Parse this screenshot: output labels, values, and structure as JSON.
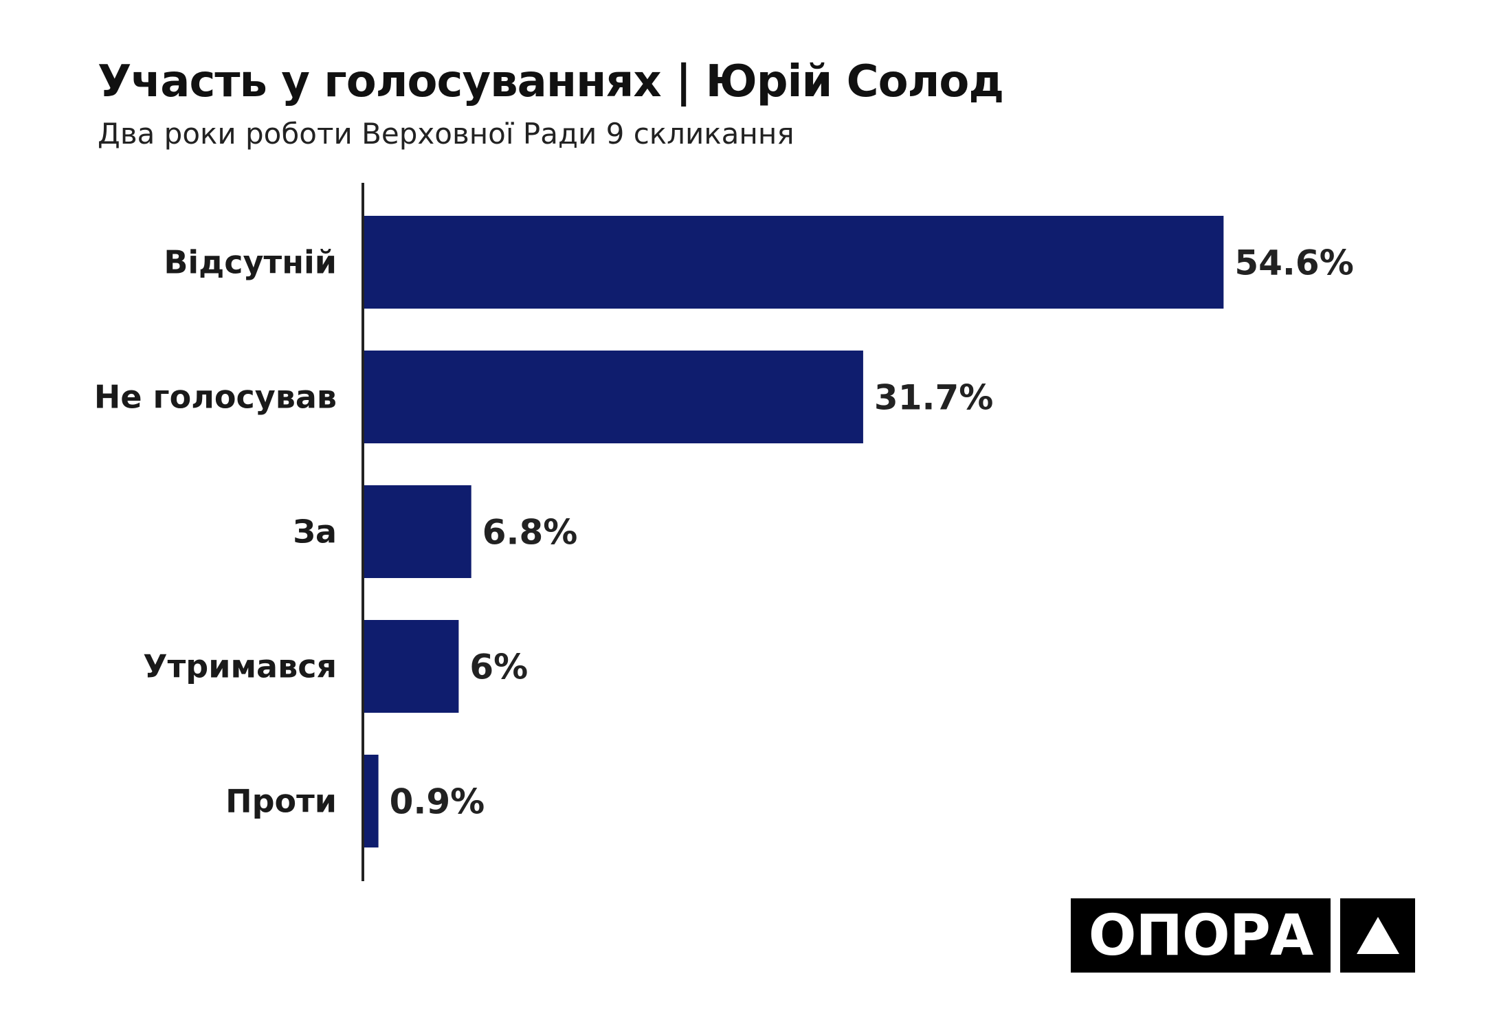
{
  "chart_data": {
    "type": "bar",
    "orientation": "horizontal",
    "title": "Участь у голосуваннях | Юрій Солод",
    "subtitle": "Два роки роботи Верховної Ради 9 скликання",
    "categories": [
      "Відсутній",
      "Не голосував",
      "За",
      "Утримався",
      "Проти"
    ],
    "values": [
      54.6,
      31.7,
      6.8,
      6,
      0.9
    ],
    "value_labels": [
      "54.6%",
      "31.7%",
      "6.8%",
      "6%",
      "0.9%"
    ],
    "xlabel": "",
    "ylabel": "",
    "xlim": [
      0,
      60
    ],
    "grid": false,
    "bar_color": "#0f1d6e"
  },
  "logo": {
    "text": "ОПОРА"
  }
}
